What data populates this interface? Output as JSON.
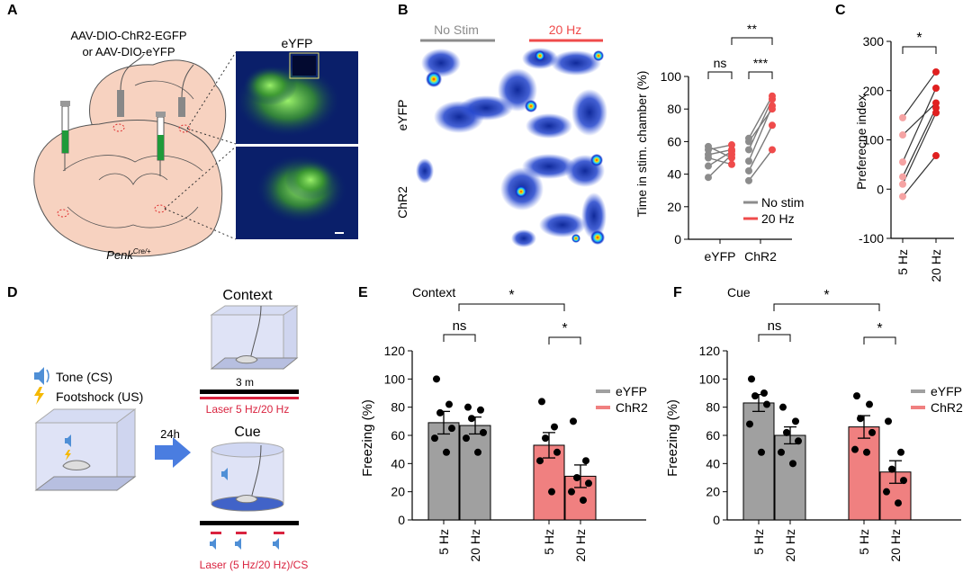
{
  "panels": {
    "A": {
      "letter": "A",
      "virus_line1": "AAV-DIO-ChR2-EGFP",
      "virus_line2": "or AAV-DIO-eYFP",
      "mouse_line": "Penk",
      "mouse_sup": "Cre/+",
      "image_label": "eYFP"
    },
    "B": {
      "letter": "B",
      "no_stim_label": "No Stim",
      "stim_label": "20 Hz",
      "row1": "eYFP",
      "row2": "ChR2",
      "colors": {
        "no_stim": "#8c8c8c",
        "stim": "#ef4b4b"
      }
    },
    "D": {
      "letter": "D",
      "tone": "Tone (CS)",
      "footshock": "Footshock (US)",
      "delay": "24h",
      "context_title": "Context",
      "context_duration": "3 m",
      "context_laser": "Laser 5 Hz/20 Hz",
      "cue_title": "Cue",
      "cue_laser": "Laser (5 Hz/20 Hz)/CS"
    }
  },
  "chart_data": [
    {
      "panel": "B",
      "type": "line",
      "ylabel": "Time in stim. chamber (%)",
      "ylim": [
        0,
        100
      ],
      "yticks": [
        0,
        20,
        40,
        60,
        80,
        100
      ],
      "categories": [
        "eYFP",
        "ChR2"
      ],
      "legend": [
        "No stim",
        "20 Hz"
      ],
      "colors": {
        "nostim": "#8c8c8c",
        "stim": "#ef4b4b"
      },
      "pairs": [
        {
          "group": "eYFP",
          "nostim": [
            38,
            52,
            57,
            50,
            55,
            45
          ],
          "stim": [
            52,
            55,
            50,
            46,
            58,
            54
          ]
        },
        {
          "group": "ChR2",
          "nostim": [
            36,
            42,
            48,
            55,
            62,
            60
          ],
          "stim": [
            55,
            70,
            82,
            86,
            88,
            80
          ]
        }
      ],
      "significance": [
        {
          "label": "ns",
          "between": "eYFP No stim vs 20 Hz"
        },
        {
          "label": "***",
          "between": "ChR2 No stim vs 20 Hz"
        },
        {
          "label": "**",
          "between": "eYFP vs ChR2"
        }
      ]
    },
    {
      "panel": "C",
      "type": "line",
      "ylabel": "Preferecne index",
      "ylim": [
        -100,
        300
      ],
      "yticks": [
        -100,
        0,
        100,
        200,
        300
      ],
      "categories": [
        "5 Hz",
        "20 Hz"
      ],
      "colors": {
        "c5": "#f5a3a3",
        "c20": "#e02020"
      },
      "pairs": [
        [
          -15,
          68
        ],
        [
          10,
          155
        ],
        [
          25,
          165
        ],
        [
          55,
          205
        ],
        [
          110,
          175
        ],
        [
          145,
          238
        ]
      ],
      "significance": [
        {
          "label": "*",
          "between": "5 Hz vs 20 Hz"
        }
      ]
    },
    {
      "panel": "E",
      "type": "bar",
      "title": "Context",
      "ylabel": "Freezing (%)",
      "ylim": [
        0,
        120
      ],
      "yticks": [
        0,
        20,
        40,
        60,
        80,
        100,
        120
      ],
      "categories": [
        "5 Hz",
        "20 Hz",
        "5 Hz",
        "20 Hz"
      ],
      "legend": [
        "eYFP",
        "ChR2"
      ],
      "colors": {
        "eYFP": "#a0a0a0",
        "ChR2": "#f08080"
      },
      "bars": [
        {
          "group": "eYFP",
          "freq": "5 Hz",
          "mean": 69,
          "sem": 8,
          "points": [
            100,
            82,
            76,
            65,
            58,
            48
          ]
        },
        {
          "group": "eYFP",
          "freq": "20 Hz",
          "mean": 67,
          "sem": 6,
          "points": [
            80,
            78,
            72,
            62,
            58,
            48
          ]
        },
        {
          "group": "ChR2",
          "freq": "5 Hz",
          "mean": 53,
          "sem": 9,
          "points": [
            84,
            66,
            58,
            48,
            42,
            20
          ]
        },
        {
          "group": "ChR2",
          "freq": "20 Hz",
          "mean": 31,
          "sem": 8,
          "points": [
            70,
            42,
            30,
            26,
            20,
            14
          ]
        }
      ],
      "significance": [
        {
          "label": "ns",
          "between": "eYFP 5 Hz vs 20 Hz"
        },
        {
          "label": "*",
          "between": "ChR2 5 Hz vs 20 Hz"
        },
        {
          "label": "*",
          "between": "eYFP vs ChR2"
        }
      ]
    },
    {
      "panel": "F",
      "type": "bar",
      "title": "Cue",
      "ylabel": "Freezing (%)",
      "ylim": [
        0,
        120
      ],
      "yticks": [
        0,
        20,
        40,
        60,
        80,
        100,
        120
      ],
      "categories": [
        "5 Hz",
        "20 Hz",
        "5 Hz",
        "20 Hz"
      ],
      "legend": [
        "eYFP",
        "ChR2"
      ],
      "colors": {
        "eYFP": "#a0a0a0",
        "ChR2": "#f08080"
      },
      "bars": [
        {
          "group": "eYFP",
          "freq": "5 Hz",
          "mean": 83,
          "sem": 6,
          "points": [
            100,
            90,
            88,
            82,
            68,
            48
          ]
        },
        {
          "group": "eYFP",
          "freq": "20 Hz",
          "mean": 60,
          "sem": 6,
          "points": [
            80,
            70,
            62,
            56,
            48,
            40
          ]
        },
        {
          "group": "ChR2",
          "freq": "5 Hz",
          "mean": 66,
          "sem": 8,
          "points": [
            88,
            82,
            72,
            62,
            50,
            48
          ]
        },
        {
          "group": "ChR2",
          "freq": "20 Hz",
          "mean": 34,
          "sem": 8,
          "points": [
            70,
            48,
            36,
            28,
            20,
            12
          ]
        }
      ],
      "significance": [
        {
          "label": "ns",
          "between": "eYFP 5 Hz vs 20 Hz"
        },
        {
          "label": "*",
          "between": "ChR2 5 Hz vs 20 Hz"
        },
        {
          "label": "*",
          "between": "eYFP vs ChR2"
        }
      ]
    }
  ]
}
